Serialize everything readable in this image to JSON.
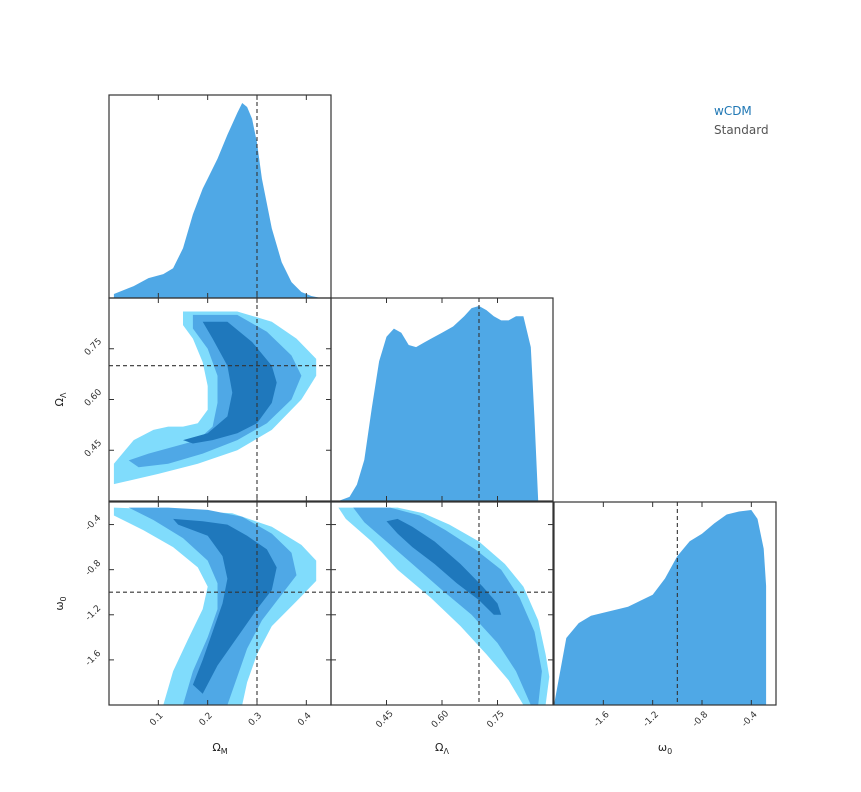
{
  "chart_data": {
    "type": "corner",
    "parameters": [
      {
        "key": "om",
        "label": "Ω",
        "label_sub": "M",
        "range": [
          0.0,
          0.45
        ],
        "ticks": [
          "0.1",
          "0.2",
          "0.3",
          "0.4"
        ],
        "truth": 0.3
      },
      {
        "key": "ol",
        "label": "Ω",
        "label_sub": "Λ",
        "range": [
          0.3,
          0.9
        ],
        "ticks": [
          "0.45",
          "0.60",
          "0.75"
        ],
        "truth": 0.7
      },
      {
        "key": "w0",
        "label": "ω",
        "label_sub": "0",
        "range": [
          -2.0,
          -0.2
        ],
        "ticks": [
          "-1.6",
          "-1.2",
          "-0.8",
          "-0.4"
        ],
        "truth": -1.0
      }
    ],
    "legend": [
      {
        "name": "wCDM",
        "color": "#1f77b4"
      },
      {
        "name": "Standard",
        "color": "#555555"
      }
    ],
    "colors": {
      "marginal": "#4fa8e6",
      "level_3sigma": "#80dcfc",
      "level_2sigma": "#4fa8e6",
      "level_1sigma": "#1f78bc",
      "truth_line": "#333333",
      "frame": "#333333"
    },
    "marginals": [
      {
        "param": "om",
        "x": [
          0.01,
          0.05,
          0.08,
          0.11,
          0.13,
          0.15,
          0.17,
          0.19,
          0.2,
          0.22,
          0.24,
          0.26,
          0.27,
          0.28,
          0.29,
          0.3,
          0.31,
          0.33,
          0.35,
          0.37,
          0.39,
          0.41,
          0.43
        ],
        "y": [
          0.02,
          0.06,
          0.1,
          0.12,
          0.15,
          0.25,
          0.42,
          0.55,
          0.6,
          0.7,
          0.82,
          0.93,
          0.98,
          0.96,
          0.9,
          0.78,
          0.6,
          0.35,
          0.18,
          0.08,
          0.03,
          0.01,
          0.0
        ]
      },
      {
        "param": "ol",
        "x": [
          0.32,
          0.35,
          0.37,
          0.39,
          0.41,
          0.43,
          0.45,
          0.47,
          0.49,
          0.51,
          0.53,
          0.55,
          0.57,
          0.6,
          0.63,
          0.66,
          0.68,
          0.7,
          0.72,
          0.74,
          0.76,
          0.78,
          0.8,
          0.82,
          0.84,
          0.85,
          0.86
        ],
        "y": [
          0.0,
          0.02,
          0.08,
          0.2,
          0.45,
          0.68,
          0.8,
          0.84,
          0.82,
          0.76,
          0.75,
          0.77,
          0.79,
          0.82,
          0.85,
          0.9,
          0.94,
          0.95,
          0.93,
          0.9,
          0.88,
          0.88,
          0.9,
          0.9,
          0.75,
          0.4,
          0.0
        ]
      },
      {
        "param": "w0",
        "x": [
          -2.0,
          -1.9,
          -1.8,
          -1.7,
          -1.6,
          -1.5,
          -1.4,
          -1.3,
          -1.2,
          -1.1,
          -1.0,
          -0.9,
          -0.8,
          -0.7,
          -0.6,
          -0.5,
          -0.4,
          -0.35,
          -0.3,
          -0.28
        ],
        "y": [
          0.0,
          0.45,
          0.55,
          0.6,
          0.62,
          0.64,
          0.66,
          0.7,
          0.74,
          0.85,
          1.0,
          1.1,
          1.15,
          1.22,
          1.28,
          1.3,
          1.31,
          1.25,
          1.05,
          0.8
        ]
      }
    ],
    "contours": [
      {
        "x": "om",
        "y": "ol",
        "levels": [
          {
            "level": "3sigma",
            "points": [
              [
                0.01,
                0.35
              ],
              [
                0.01,
                0.41
              ],
              [
                0.05,
                0.48
              ],
              [
                0.09,
                0.51
              ],
              [
                0.12,
                0.52
              ],
              [
                0.15,
                0.52
              ],
              [
                0.18,
                0.53
              ],
              [
                0.2,
                0.57
              ],
              [
                0.2,
                0.64
              ],
              [
                0.19,
                0.71
              ],
              [
                0.17,
                0.78
              ],
              [
                0.15,
                0.82
              ],
              [
                0.15,
                0.86
              ],
              [
                0.26,
                0.86
              ],
              [
                0.33,
                0.83
              ],
              [
                0.38,
                0.78
              ],
              [
                0.42,
                0.72
              ],
              [
                0.42,
                0.67
              ],
              [
                0.39,
                0.6
              ],
              [
                0.33,
                0.51
              ],
              [
                0.26,
                0.45
              ],
              [
                0.18,
                0.41
              ],
              [
                0.1,
                0.38
              ],
              [
                0.04,
                0.36
              ]
            ]
          },
          {
            "level": "2sigma",
            "points": [
              [
                0.04,
                0.42
              ],
              [
                0.08,
                0.44
              ],
              [
                0.13,
                0.46
              ],
              [
                0.18,
                0.48
              ],
              [
                0.21,
                0.52
              ],
              [
                0.22,
                0.59
              ],
              [
                0.22,
                0.67
              ],
              [
                0.2,
                0.75
              ],
              [
                0.17,
                0.81
              ],
              [
                0.17,
                0.85
              ],
              [
                0.26,
                0.85
              ],
              [
                0.32,
                0.8
              ],
              [
                0.37,
                0.73
              ],
              [
                0.39,
                0.67
              ],
              [
                0.37,
                0.6
              ],
              [
                0.32,
                0.53
              ],
              [
                0.26,
                0.48
              ],
              [
                0.19,
                0.44
              ],
              [
                0.12,
                0.41
              ],
              [
                0.06,
                0.4
              ]
            ]
          },
          {
            "level": "1sigma",
            "points": [
              [
                0.15,
                0.48
              ],
              [
                0.2,
                0.5
              ],
              [
                0.24,
                0.55
              ],
              [
                0.25,
                0.62
              ],
              [
                0.24,
                0.7
              ],
              [
                0.21,
                0.78
              ],
              [
                0.19,
                0.83
              ],
              [
                0.24,
                0.83
              ],
              [
                0.29,
                0.77
              ],
              [
                0.33,
                0.7
              ],
              [
                0.34,
                0.65
              ],
              [
                0.33,
                0.59
              ],
              [
                0.3,
                0.53
              ],
              [
                0.26,
                0.5
              ],
              [
                0.21,
                0.48
              ],
              [
                0.17,
                0.47
              ]
            ]
          }
        ]
      },
      {
        "x": "om",
        "y": "w0",
        "levels": [
          {
            "level": "3sigma",
            "points": [
              [
                0.01,
                -0.25
              ],
              [
                0.07,
                -0.26
              ],
              [
                0.16,
                -0.28
              ],
              [
                0.25,
                -0.3
              ],
              [
                0.33,
                -0.42
              ],
              [
                0.39,
                -0.58
              ],
              [
                0.42,
                -0.72
              ],
              [
                0.42,
                -0.9
              ],
              [
                0.38,
                -1.08
              ],
              [
                0.33,
                -1.3
              ],
              [
                0.3,
                -1.55
              ],
              [
                0.28,
                -1.8
              ],
              [
                0.27,
                -2.0
              ],
              [
                0.11,
                -2.0
              ],
              [
                0.13,
                -1.7
              ],
              [
                0.16,
                -1.42
              ],
              [
                0.19,
                -1.15
              ],
              [
                0.2,
                -0.95
              ],
              [
                0.18,
                -0.78
              ],
              [
                0.13,
                -0.6
              ],
              [
                0.07,
                -0.45
              ],
              [
                0.01,
                -0.32
              ]
            ]
          },
          {
            "level": "2sigma",
            "points": [
              [
                0.04,
                -0.25
              ],
              [
                0.12,
                -0.25
              ],
              [
                0.2,
                -0.27
              ],
              [
                0.27,
                -0.33
              ],
              [
                0.33,
                -0.48
              ],
              [
                0.37,
                -0.65
              ],
              [
                0.38,
                -0.85
              ],
              [
                0.35,
                -1.02
              ],
              [
                0.31,
                -1.25
              ],
              [
                0.28,
                -1.5
              ],
              [
                0.26,
                -1.75
              ],
              [
                0.24,
                -2.0
              ],
              [
                0.15,
                -2.0
              ],
              [
                0.17,
                -1.7
              ],
              [
                0.2,
                -1.4
              ],
              [
                0.22,
                -1.15
              ],
              [
                0.22,
                -0.92
              ],
              [
                0.2,
                -0.72
              ],
              [
                0.15,
                -0.52
              ],
              [
                0.09,
                -0.36
              ]
            ]
          },
          {
            "level": "1sigma",
            "points": [
              [
                0.13,
                -0.35
              ],
              [
                0.19,
                -0.37
              ],
              [
                0.24,
                -0.4
              ],
              [
                0.28,
                -0.5
              ],
              [
                0.32,
                -0.62
              ],
              [
                0.34,
                -0.78
              ],
              [
                0.33,
                -0.98
              ],
              [
                0.3,
                -1.15
              ],
              [
                0.26,
                -1.4
              ],
              [
                0.22,
                -1.65
              ],
              [
                0.19,
                -1.9
              ],
              [
                0.17,
                -1.82
              ],
              [
                0.19,
                -1.6
              ],
              [
                0.21,
                -1.35
              ],
              [
                0.23,
                -1.1
              ],
              [
                0.24,
                -0.88
              ],
              [
                0.23,
                -0.68
              ],
              [
                0.2,
                -0.5
              ],
              [
                0.14,
                -0.4
              ]
            ]
          }
        ]
      },
      {
        "x": "ol",
        "y": "w0",
        "levels": [
          {
            "level": "3sigma",
            "points": [
              [
                0.32,
                -0.25
              ],
              [
                0.48,
                -0.25
              ],
              [
                0.55,
                -0.3
              ],
              [
                0.62,
                -0.4
              ],
              [
                0.7,
                -0.55
              ],
              [
                0.77,
                -0.75
              ],
              [
                0.82,
                -0.95
              ],
              [
                0.86,
                -1.25
              ],
              [
                0.88,
                -1.55
              ],
              [
                0.89,
                -1.75
              ],
              [
                0.88,
                -2.0
              ],
              [
                0.82,
                -2.0
              ],
              [
                0.78,
                -1.78
              ],
              [
                0.72,
                -1.55
              ],
              [
                0.65,
                -1.3
              ],
              [
                0.57,
                -1.05
              ],
              [
                0.48,
                -0.8
              ],
              [
                0.41,
                -0.55
              ],
              [
                0.34,
                -0.35
              ]
            ]
          },
          {
            "level": "2sigma",
            "points": [
              [
                0.36,
                -0.25
              ],
              [
                0.46,
                -0.25
              ],
              [
                0.54,
                -0.32
              ],
              [
                0.61,
                -0.45
              ],
              [
                0.69,
                -0.62
              ],
              [
                0.76,
                -0.8
              ],
              [
                0.81,
                -1.05
              ],
              [
                0.85,
                -1.35
              ],
              [
                0.87,
                -1.7
              ],
              [
                0.86,
                -2.0
              ],
              [
                0.84,
                -2.0
              ],
              [
                0.8,
                -1.7
              ],
              [
                0.75,
                -1.45
              ],
              [
                0.68,
                -1.2
              ],
              [
                0.6,
                -0.98
              ],
              [
                0.52,
                -0.75
              ],
              [
                0.45,
                -0.55
              ],
              [
                0.39,
                -0.38
              ]
            ]
          },
          {
            "level": "1sigma",
            "points": [
              [
                0.45,
                -0.37
              ],
              [
                0.48,
                -0.35
              ],
              [
                0.52,
                -0.42
              ],
              [
                0.58,
                -0.55
              ],
              [
                0.65,
                -0.75
              ],
              [
                0.71,
                -0.95
              ],
              [
                0.75,
                -1.1
              ],
              [
                0.76,
                -1.2
              ],
              [
                0.74,
                -1.2
              ],
              [
                0.7,
                -1.07
              ],
              [
                0.64,
                -0.92
              ],
              [
                0.58,
                -0.75
              ],
              [
                0.52,
                -0.6
              ],
              [
                0.48,
                -0.48
              ]
            ]
          }
        ]
      }
    ]
  }
}
